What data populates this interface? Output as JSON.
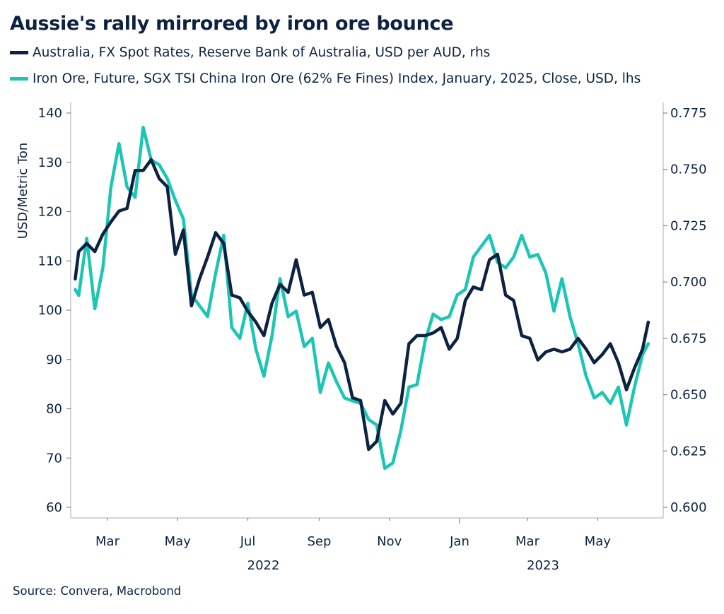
{
  "title": "Aussie's rally mirrored by iron ore bounce",
  "legend": [
    {
      "label": "Australia, FX Spot Rates, Reserve Bank of Australia, USD per AUD, rhs",
      "color": "#0d2240"
    },
    {
      "label": "Iron Ore, Future, SGX TSI China Iron Ore (62% Fe Fines) Index, January, 2025, Close, USD, lhs",
      "color": "#1cc6b4"
    }
  ],
  "source": "Source: Convera, Macrobond",
  "chart_data": {
    "type": "line",
    "title": "Aussie's rally mirrored by iron ore bounce",
    "ylabel_left": "USD/Metric Ton",
    "ylabel_right": "",
    "xlabel": "",
    "ylim_left": [
      60,
      140
    ],
    "ylim_right": [
      0.6,
      0.775
    ],
    "yticks_left": [
      "60",
      "70",
      "80",
      "90",
      "100",
      "110",
      "120",
      "130",
      "140"
    ],
    "yticks_right": [
      "0.600",
      "0.625",
      "0.650",
      "0.675",
      "0.700",
      "0.725",
      "0.750",
      "0.775"
    ],
    "xtick_labels": [
      {
        "label": "Mar",
        "date": "2022-03-01"
      },
      {
        "label": "May",
        "date": "2022-05-01"
      },
      {
        "label": "Jul",
        "date": "2022-07-01"
      },
      {
        "label": "Sep",
        "date": "2022-09-01"
      },
      {
        "label": "Nov",
        "date": "2022-11-01"
      },
      {
        "label": "Jan",
        "date": "2023-01-01"
      },
      {
        "label": "Mar",
        "date": "2023-03-01"
      },
      {
        "label": "May",
        "date": "2023-05-01"
      }
    ],
    "year_labels": [
      {
        "label": "2022",
        "date": "2022-07-01"
      },
      {
        "label": "2023",
        "date": "2023-03-01"
      }
    ],
    "grid": false,
    "legend_position": "top",
    "x": [
      "2022-02-01",
      "2022-02-04",
      "2022-02-11",
      "2022-02-18",
      "2022-02-25",
      "2022-03-04",
      "2022-03-11",
      "2022-03-18",
      "2022-03-25",
      "2022-04-01",
      "2022-04-08",
      "2022-04-15",
      "2022-04-22",
      "2022-04-29",
      "2022-05-06",
      "2022-05-13",
      "2022-05-20",
      "2022-05-27",
      "2022-06-03",
      "2022-06-10",
      "2022-06-17",
      "2022-06-24",
      "2022-07-01",
      "2022-07-08",
      "2022-07-15",
      "2022-07-22",
      "2022-07-29",
      "2022-08-05",
      "2022-08-12",
      "2022-08-19",
      "2022-08-26",
      "2022-09-02",
      "2022-09-09",
      "2022-09-16",
      "2022-09-23",
      "2022-09-30",
      "2022-10-07",
      "2022-10-14",
      "2022-10-21",
      "2022-10-28",
      "2022-11-04",
      "2022-11-11",
      "2022-11-18",
      "2022-11-25",
      "2022-12-02",
      "2022-12-09",
      "2022-12-16",
      "2022-12-23",
      "2022-12-30",
      "2023-01-06",
      "2023-01-13",
      "2023-01-20",
      "2023-01-27",
      "2023-02-03",
      "2023-02-10",
      "2023-02-17",
      "2023-02-24",
      "2023-03-03",
      "2023-03-10",
      "2023-03-17",
      "2023-03-24",
      "2023-03-31",
      "2023-04-07",
      "2023-04-14",
      "2023-04-21",
      "2023-04-28",
      "2023-05-05",
      "2023-05-12",
      "2023-05-19",
      "2023-05-26",
      "2023-06-02",
      "2023-06-09",
      "2023-06-14"
    ],
    "series": [
      {
        "name": "Australia, FX Spot Rates, Reserve Bank of Australia, USD per AUD, rhs",
        "axis": "right",
        "color": "#0d2240",
        "values": [
          0.7014,
          0.7135,
          0.7171,
          0.7135,
          0.7213,
          0.7267,
          0.7315,
          0.7327,
          0.7495,
          0.7495,
          0.7543,
          0.7459,
          0.7423,
          0.7123,
          0.7231,
          0.6894,
          0.7014,
          0.7111,
          0.7219,
          0.7171,
          0.6942,
          0.693,
          0.687,
          0.6822,
          0.6762,
          0.6906,
          0.699,
          0.6954,
          0.7099,
          0.6942,
          0.6954,
          0.6798,
          0.6834,
          0.6714,
          0.6642,
          0.6486,
          0.6474,
          0.6257,
          0.6293,
          0.6474,
          0.6414,
          0.6462,
          0.6726,
          0.6762,
          0.6762,
          0.6774,
          0.6798,
          0.6702,
          0.675,
          0.6918,
          0.6978,
          0.6966,
          0.7099,
          0.7123,
          0.6942,
          0.6918,
          0.6762,
          0.675,
          0.6654,
          0.669,
          0.6702,
          0.669,
          0.6702,
          0.675,
          0.6702,
          0.6642,
          0.6678,
          0.6726,
          0.6642,
          0.6522,
          0.6618,
          0.6702,
          0.6822
        ]
      },
      {
        "name": "Iron Ore, Future, SGX TSI China Iron Ore (62% Fe Fines) Index, January, 2025, Close, USD, lhs",
        "axis": "left",
        "color": "#1cc6b4",
        "values": [
          104.2,
          103.0,
          114.6,
          100.3,
          108.6,
          125.0,
          133.8,
          125.0,
          122.9,
          137.1,
          130.5,
          129.5,
          126.7,
          122.3,
          118.5,
          103.1,
          100.9,
          98.7,
          107.5,
          115.2,
          96.5,
          94.3,
          101.4,
          92.1,
          86.6,
          94.8,
          106.4,
          98.7,
          99.8,
          92.6,
          94.3,
          83.3,
          89.3,
          85.5,
          82.2,
          81.6,
          81.1,
          77.8,
          76.7,
          67.9,
          69.0,
          75.6,
          84.4,
          84.9,
          93.7,
          99.2,
          98.1,
          98.7,
          103.1,
          104.2,
          110.8,
          113.0,
          115.2,
          109.7,
          108.6,
          110.8,
          115.2,
          110.8,
          111.3,
          107.5,
          99.8,
          106.4,
          98.7,
          93.2,
          86.6,
          82.2,
          83.3,
          81.1,
          84.4,
          76.7,
          84.4,
          91.0,
          93.2
        ]
      }
    ]
  }
}
